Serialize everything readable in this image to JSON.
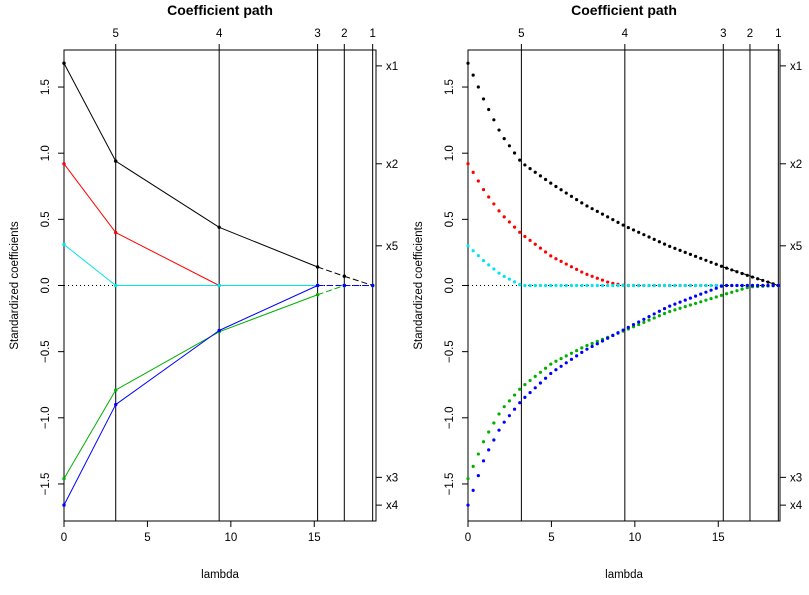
{
  "chart_data": [
    {
      "type": "line",
      "style": "lines-with-points-at-knots",
      "title": "Coefficient path",
      "xlabel": "lambda",
      "ylabel": "Standardized coefficients",
      "xlim": [
        0,
        18.7
      ],
      "ylim": [
        -1.78,
        1.78
      ],
      "xticks": [
        "0",
        "5",
        "10",
        "15"
      ],
      "yticks": [
        "−1.5",
        "−1.0",
        "−0.5",
        "0.0",
        "0.5",
        "1.0",
        "1.5"
      ],
      "knots": [
        {
          "lambda": 3.1,
          "label": "5"
        },
        {
          "lambda": 9.3,
          "label": "4"
        },
        {
          "lambda": 15.2,
          "label": "3"
        },
        {
          "lambda": 16.8,
          "label": "2"
        },
        {
          "lambda": 18.5,
          "label": "1"
        }
      ],
      "right_labels": [
        {
          "label": "x1",
          "y": 1.66
        },
        {
          "label": "x2",
          "y": 0.92
        },
        {
          "label": "x5",
          "y": 0.3
        },
        {
          "label": "x3",
          "y": -1.45
        },
        {
          "label": "x4",
          "y": -1.66
        }
      ],
      "zero_line": true,
      "series": [
        {
          "name": "x1",
          "color": "#000000",
          "x": [
            0,
            3.1,
            9.3,
            15.2,
            16.8,
            18.5
          ],
          "y": [
            1.68,
            0.94,
            0.44,
            0.14,
            0.07,
            0.0
          ]
        },
        {
          "name": "x2",
          "color": "#ff0000",
          "x": [
            0,
            3.1,
            9.3,
            15.2,
            16.8,
            18.5
          ],
          "y": [
            0.92,
            0.4,
            0.0,
            0.0,
            0.0,
            0.0
          ]
        },
        {
          "name": "x5",
          "color": "#00e5ee",
          "x": [
            0,
            3.1,
            9.3,
            15.2,
            16.8,
            18.5
          ],
          "y": [
            0.31,
            0.0,
            0.0,
            0.0,
            0.0,
            0.0
          ]
        },
        {
          "name": "x3",
          "color": "#00b000",
          "x": [
            0,
            3.1,
            9.3,
            15.2,
            16.8,
            18.5
          ],
          "y": [
            -1.46,
            -0.79,
            -0.35,
            -0.07,
            0.0,
            0.0
          ]
        },
        {
          "name": "x4",
          "color": "#0000ff",
          "x": [
            0,
            3.1,
            9.3,
            15.2,
            16.8,
            18.5
          ],
          "y": [
            -1.66,
            -0.9,
            -0.34,
            0.0,
            0.0,
            0.0
          ]
        }
      ]
    },
    {
      "type": "scatter",
      "style": "dense-points-along-path",
      "title": "Coefficient path",
      "xlabel": "lambda",
      "ylabel": "Standardized coefficients",
      "xlim": [
        0,
        18.7
      ],
      "ylim": [
        -1.78,
        1.78
      ],
      "xticks": [
        "0",
        "5",
        "10",
        "15"
      ],
      "yticks": [
        "−1.5",
        "−1.0",
        "−0.5",
        "0.0",
        "0.5",
        "1.0",
        "1.5"
      ],
      "knots": [
        {
          "lambda": 3.2,
          "label": "5"
        },
        {
          "lambda": 9.4,
          "label": "4"
        },
        {
          "lambda": 15.3,
          "label": "3"
        },
        {
          "lambda": 16.9,
          "label": "2"
        },
        {
          "lambda": 18.6,
          "label": "1"
        }
      ],
      "right_labels": [
        {
          "label": "x1",
          "y": 1.66
        },
        {
          "label": "x2",
          "y": 0.92
        },
        {
          "label": "x5",
          "y": 0.3
        },
        {
          "label": "x3",
          "y": -1.45
        },
        {
          "label": "x4",
          "y": -1.66
        }
      ],
      "zero_line": true,
      "series": [
        {
          "name": "x1",
          "color": "#000000",
          "x": [
            0,
            1,
            2,
            3.2,
            5,
            7,
            9.4,
            12,
            15.3,
            16.9,
            18.6
          ],
          "y": [
            1.68,
            1.39,
            1.14,
            0.93,
            0.77,
            0.61,
            0.45,
            0.3,
            0.14,
            0.07,
            0.0
          ]
        },
        {
          "name": "x2",
          "color": "#ff0000",
          "x": [
            0,
            1,
            2,
            3.2,
            5,
            7,
            8.5,
            9.4,
            18.6
          ],
          "y": [
            0.92,
            0.71,
            0.54,
            0.39,
            0.22,
            0.09,
            0.02,
            0.0,
            0.0
          ]
        },
        {
          "name": "x5",
          "color": "#00e5ee",
          "x": [
            0,
            1,
            2,
            3.2,
            18.6
          ],
          "y": [
            0.3,
            0.18,
            0.08,
            0.0,
            0.0
          ]
        },
        {
          "name": "x3",
          "color": "#00b000",
          "x": [
            0,
            1,
            2,
            3.2,
            5,
            7,
            9.4,
            12,
            15.3,
            16.9,
            18.6
          ],
          "y": [
            -1.46,
            -1.16,
            -0.94,
            -0.77,
            -0.59,
            -0.46,
            -0.34,
            -0.2,
            -0.07,
            -0.01,
            0.0
          ]
        },
        {
          "name": "x4",
          "color": "#0000ff",
          "x": [
            0,
            1,
            2,
            3.2,
            5,
            7,
            9.4,
            12,
            15.3,
            16.9,
            18.6
          ],
          "y": [
            -1.66,
            -1.3,
            -1.06,
            -0.87,
            -0.66,
            -0.49,
            -0.33,
            -0.16,
            0.0,
            0.0,
            0.0
          ]
        }
      ]
    }
  ]
}
